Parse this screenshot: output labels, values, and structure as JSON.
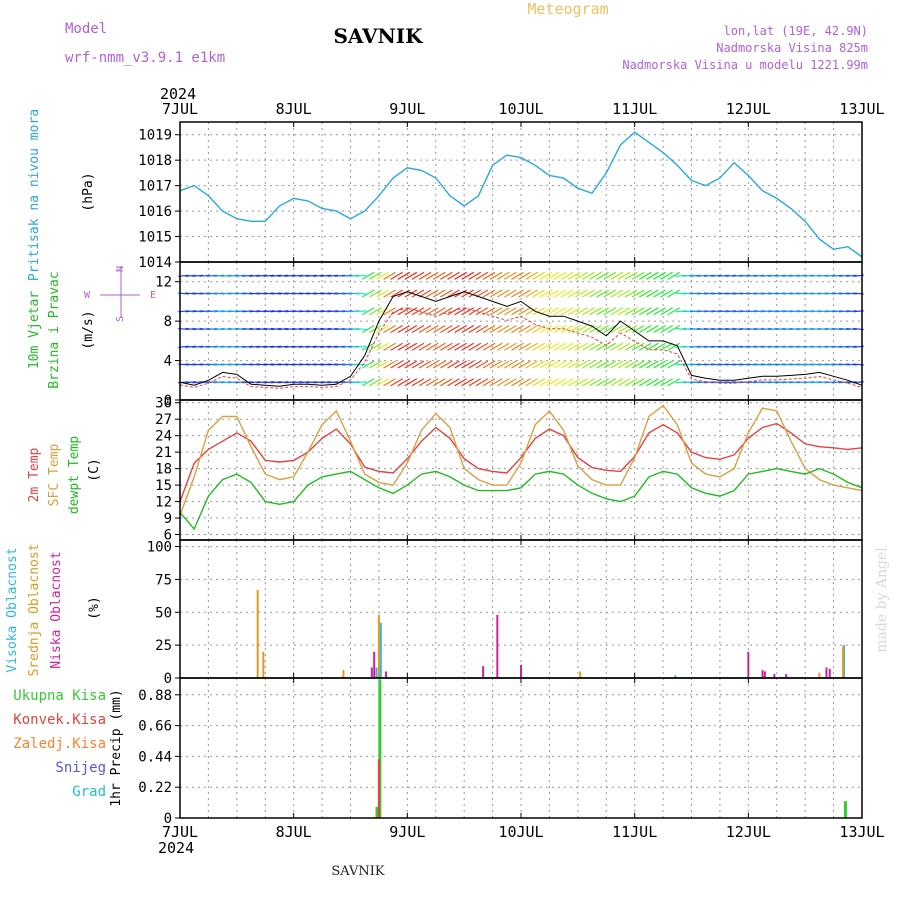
{
  "header": {
    "meteogram_label": "Meteogram",
    "model_label": "Model",
    "model_name": "wrf-nmm_v3.9.1 e1km",
    "station": "SAVNIK",
    "lonlat": "lon,lat (19E, 42.9N)",
    "elevation": "Nadmorska Visina 825m",
    "model_elevation": "Nadmorska Visina u modelu 1221.99m",
    "year": "2024"
  },
  "footer": {
    "station": "SAVNIK",
    "watermark": "made by Angel"
  },
  "wind_key": {
    "west": "W",
    "east": "E",
    "north": "N",
    "south": "S"
  },
  "colors": {
    "pressure": "#2aa7e0",
    "temp2m": "#e84040",
    "sfc_temp": "#d8a040",
    "dewpoint": "#22bb22",
    "high_cloud": "#30b8e0",
    "mid_cloud": "#e09a20",
    "low_cloud": "#d020a0",
    "total_precip": "#33cc33",
    "conv_precip": "#e84040",
    "freezing_precip": "#ff8030",
    "snow": "#5555dd",
    "hail": "#20c0c0"
  },
  "chart_data": [
    {
      "type": "line",
      "name": "pressure",
      "title": "",
      "ylabel": [
        "Pritisak na nivou mora",
        "(hPa)"
      ],
      "x_ticks": [
        "7JUL",
        "8JUL",
        "9JUL",
        "10JUL",
        "11JUL",
        "12JUL",
        "13JUL"
      ],
      "ylim": [
        1014,
        1019.5
      ],
      "y_ticks": [
        1014,
        1015,
        1016,
        1017,
        1018,
        1019
      ],
      "x_hours": [
        0,
        3,
        6,
        9,
        12,
        15,
        18,
        21,
        24,
        27,
        30,
        33,
        36,
        39,
        42,
        45,
        48,
        51,
        54,
        57,
        60,
        63,
        66,
        69,
        72,
        75,
        78,
        81,
        84,
        87,
        90,
        93,
        96,
        99,
        102,
        105,
        108,
        111,
        114,
        117,
        120,
        123,
        126,
        129,
        132,
        135,
        138,
        141,
        144
      ],
      "series": [
        {
          "values": [
            1016.8,
            1017.0,
            1016.6,
            1016.0,
            1015.7,
            1015.6,
            1015.6,
            1016.2,
            1016.5,
            1016.4,
            1016.1,
            1016.0,
            1015.7,
            1016.0,
            1016.6,
            1017.3,
            1017.7,
            1017.6,
            1017.3,
            1016.6,
            1016.2,
            1016.6,
            1017.8,
            1018.2,
            1018.1,
            1017.8,
            1017.4,
            1017.3,
            1016.9,
            1016.7,
            1017.5,
            1018.6,
            1019.1,
            1018.7,
            1018.3,
            1017.8,
            1017.2,
            1017.0,
            1017.3,
            1017.9,
            1017.4,
            1016.8,
            1016.5,
            1016.1,
            1015.6,
            1014.9,
            1014.5,
            1014.6,
            1014.2
          ]
        }
      ]
    },
    {
      "type": "line",
      "name": "wind",
      "title": "",
      "ylabel": [
        "10m Vjetar",
        "Brzina i Pravac",
        "(m/s)"
      ],
      "x_ticks": [
        "7JUL",
        "8JUL",
        "9JUL",
        "10JUL",
        "11JUL",
        "12JUL",
        "13JUL"
      ],
      "ylim": [
        0,
        14
      ],
      "y_ticks": [
        0,
        4,
        8,
        12
      ],
      "x_hours": [
        0,
        3,
        6,
        9,
        12,
        15,
        18,
        21,
        24,
        27,
        30,
        33,
        36,
        39,
        42,
        45,
        48,
        51,
        54,
        57,
        60,
        63,
        66,
        69,
        72,
        75,
        78,
        81,
        84,
        87,
        90,
        93,
        96,
        99,
        102,
        105,
        108,
        111,
        114,
        117,
        120,
        123,
        126,
        129,
        132,
        135,
        138,
        141,
        144
      ],
      "series": [
        {
          "values": [
            1.8,
            1.5,
            2.0,
            2.8,
            2.6,
            1.6,
            1.5,
            1.4,
            1.6,
            1.6,
            1.5,
            1.6,
            2.4,
            4.5,
            8.0,
            10.5,
            11.0,
            10.5,
            10.0,
            10.5,
            11.0,
            10.5,
            10.0,
            9.5,
            10.0,
            9.0,
            8.5,
            8.5,
            8.0,
            7.5,
            6.5,
            8.0,
            7.0,
            6.0,
            6.0,
            5.5,
            2.5,
            2.2,
            2.0,
            2.0,
            2.2,
            2.4,
            2.4,
            2.5,
            2.6,
            2.8,
            2.4,
            2.0,
            1.5
          ]
        }
      ]
    },
    {
      "type": "line",
      "name": "temperature",
      "title": "",
      "ylabel": [
        "2m Temp",
        "SFC Temp",
        "dewpt Temp",
        "(C)"
      ],
      "x_ticks": [
        "7JUL",
        "8JUL",
        "9JUL",
        "10JUL",
        "11JUL",
        "12JUL",
        "13JUL"
      ],
      "ylim": [
        5,
        30.5
      ],
      "y_ticks": [
        6,
        9,
        12,
        15,
        18,
        21,
        24,
        27,
        30
      ],
      "x_hours": [
        0,
        3,
        6,
        9,
        12,
        15,
        18,
        21,
        24,
        27,
        30,
        33,
        36,
        39,
        42,
        45,
        48,
        51,
        54,
        57,
        60,
        63,
        66,
        69,
        72,
        75,
        78,
        81,
        84,
        87,
        90,
        93,
        96,
        99,
        102,
        105,
        108,
        111,
        114,
        117,
        120,
        123,
        126,
        129,
        132,
        135,
        138,
        141,
        144
      ],
      "series": [
        {
          "name": "2m Temp",
          "values": [
            12.0,
            19.0,
            21.5,
            23.0,
            24.5,
            23.0,
            19.5,
            19.2,
            19.5,
            21.0,
            23.5,
            25.2,
            22.5,
            18.3,
            17.5,
            17.2,
            19.8,
            23.0,
            25.5,
            23.5,
            19.8,
            18.0,
            17.5,
            17.2,
            20.0,
            23.5,
            25.2,
            24.0,
            20.0,
            18.2,
            17.7,
            17.5,
            20.2,
            24.5,
            26.0,
            24.5,
            21.0,
            20.0,
            19.7,
            20.5,
            23.5,
            25.5,
            26.2,
            24.5,
            22.5,
            22.0,
            21.8,
            21.5,
            21.8
          ]
        },
        {
          "name": "SFC Temp",
          "values": [
            9.5,
            16.5,
            25.0,
            27.5,
            27.5,
            22.0,
            17.0,
            16.0,
            16.5,
            21.0,
            26.0,
            28.5,
            23.0,
            17.0,
            15.5,
            15.0,
            19.0,
            25.0,
            28.0,
            25.5,
            18.0,
            16.0,
            15.0,
            15.0,
            19.0,
            26.0,
            28.5,
            25.0,
            18.5,
            16.0,
            15.0,
            15.0,
            20.0,
            27.5,
            29.5,
            26.0,
            19.0,
            17.0,
            16.5,
            18.0,
            24.5,
            29.0,
            28.5,
            23.0,
            18.0,
            16.0,
            15.0,
            14.5,
            14.0
          ]
        },
        {
          "name": "dewpt Temp",
          "values": [
            10.0,
            7.0,
            13.0,
            16.0,
            17.0,
            15.5,
            12.0,
            11.5,
            12.0,
            15.0,
            16.5,
            17.0,
            17.5,
            16.0,
            14.5,
            13.5,
            15.0,
            17.0,
            17.5,
            16.5,
            15.0,
            14.0,
            14.0,
            14.0,
            14.5,
            17.0,
            17.5,
            17.0,
            15.0,
            13.5,
            12.5,
            12.0,
            13.0,
            16.5,
            17.5,
            17.0,
            14.5,
            13.5,
            13.0,
            14.0,
            17.0,
            17.5,
            18.0,
            17.5,
            17.0,
            18.0,
            17.0,
            15.5,
            14.5
          ]
        }
      ]
    },
    {
      "type": "bar",
      "name": "cloud",
      "title": "",
      "ylabel": [
        "Visoka Oblacnost",
        "Srednja Oblacnost",
        "Niska Oblacnost",
        "(%)"
      ],
      "x_ticks": [
        "7JUL",
        "8JUL",
        "9JUL",
        "10JUL",
        "11JUL",
        "12JUL",
        "13JUL"
      ],
      "ylim": [
        0,
        105
      ],
      "y_ticks": [
        0,
        25,
        50,
        75,
        100
      ],
      "series": [
        {
          "name": "Visoka Oblacnost",
          "points": [
            [
              41.5,
              8
            ],
            [
              42.4,
              42
            ],
            [
              104.6,
              2
            ],
            [
              140.2,
              25
            ]
          ]
        },
        {
          "name": "Srednja Oblacnost",
          "points": [
            [
              16.4,
              67
            ],
            [
              17.6,
              20
            ],
            [
              34.5,
              6
            ],
            [
              42.0,
              48
            ],
            [
              84.5,
              5
            ],
            [
              135.0,
              4
            ],
            [
              140.0,
              24
            ]
          ]
        },
        {
          "name": "Niska Oblacnost",
          "points": [
            [
              40.5,
              8
            ],
            [
              41.0,
              20
            ],
            [
              43.5,
              5
            ],
            [
              64.0,
              9
            ],
            [
              67.0,
              48
            ],
            [
              72.0,
              10
            ],
            [
              120.0,
              20
            ],
            [
              123.0,
              6
            ],
            [
              123.5,
              5
            ],
            [
              125.5,
              3
            ],
            [
              128.0,
              3
            ],
            [
              136.5,
              8
            ],
            [
              137.2,
              7
            ]
          ]
        }
      ]
    },
    {
      "type": "bar",
      "name": "precip",
      "title": "",
      "ylabel": [
        "1hr Precip (mm)"
      ],
      "legend": [
        "Ukupna Kisa",
        "Konvek.Kisa",
        "Zaledj.Kisa",
        "Snijeg",
        "Grad"
      ],
      "x_ticks": [
        "7JUL",
        "8JUL",
        "9JUL",
        "10JUL",
        "11JUL",
        "12JUL",
        "13JUL"
      ],
      "ylim": [
        0,
        1.0
      ],
      "y_ticks": [
        "0",
        "0.22",
        "0.44",
        "0.66",
        "0.88"
      ],
      "series": [
        {
          "name": "Ukupna Kisa",
          "points": [
            [
              41.6,
              0.08
            ],
            [
              42.2,
              0.99
            ],
            [
              140.5,
              0.12
            ]
          ]
        },
        {
          "name": "Konvek.Kisa",
          "points": [
            [
              42.0,
              0.42
            ]
          ]
        }
      ]
    }
  ]
}
